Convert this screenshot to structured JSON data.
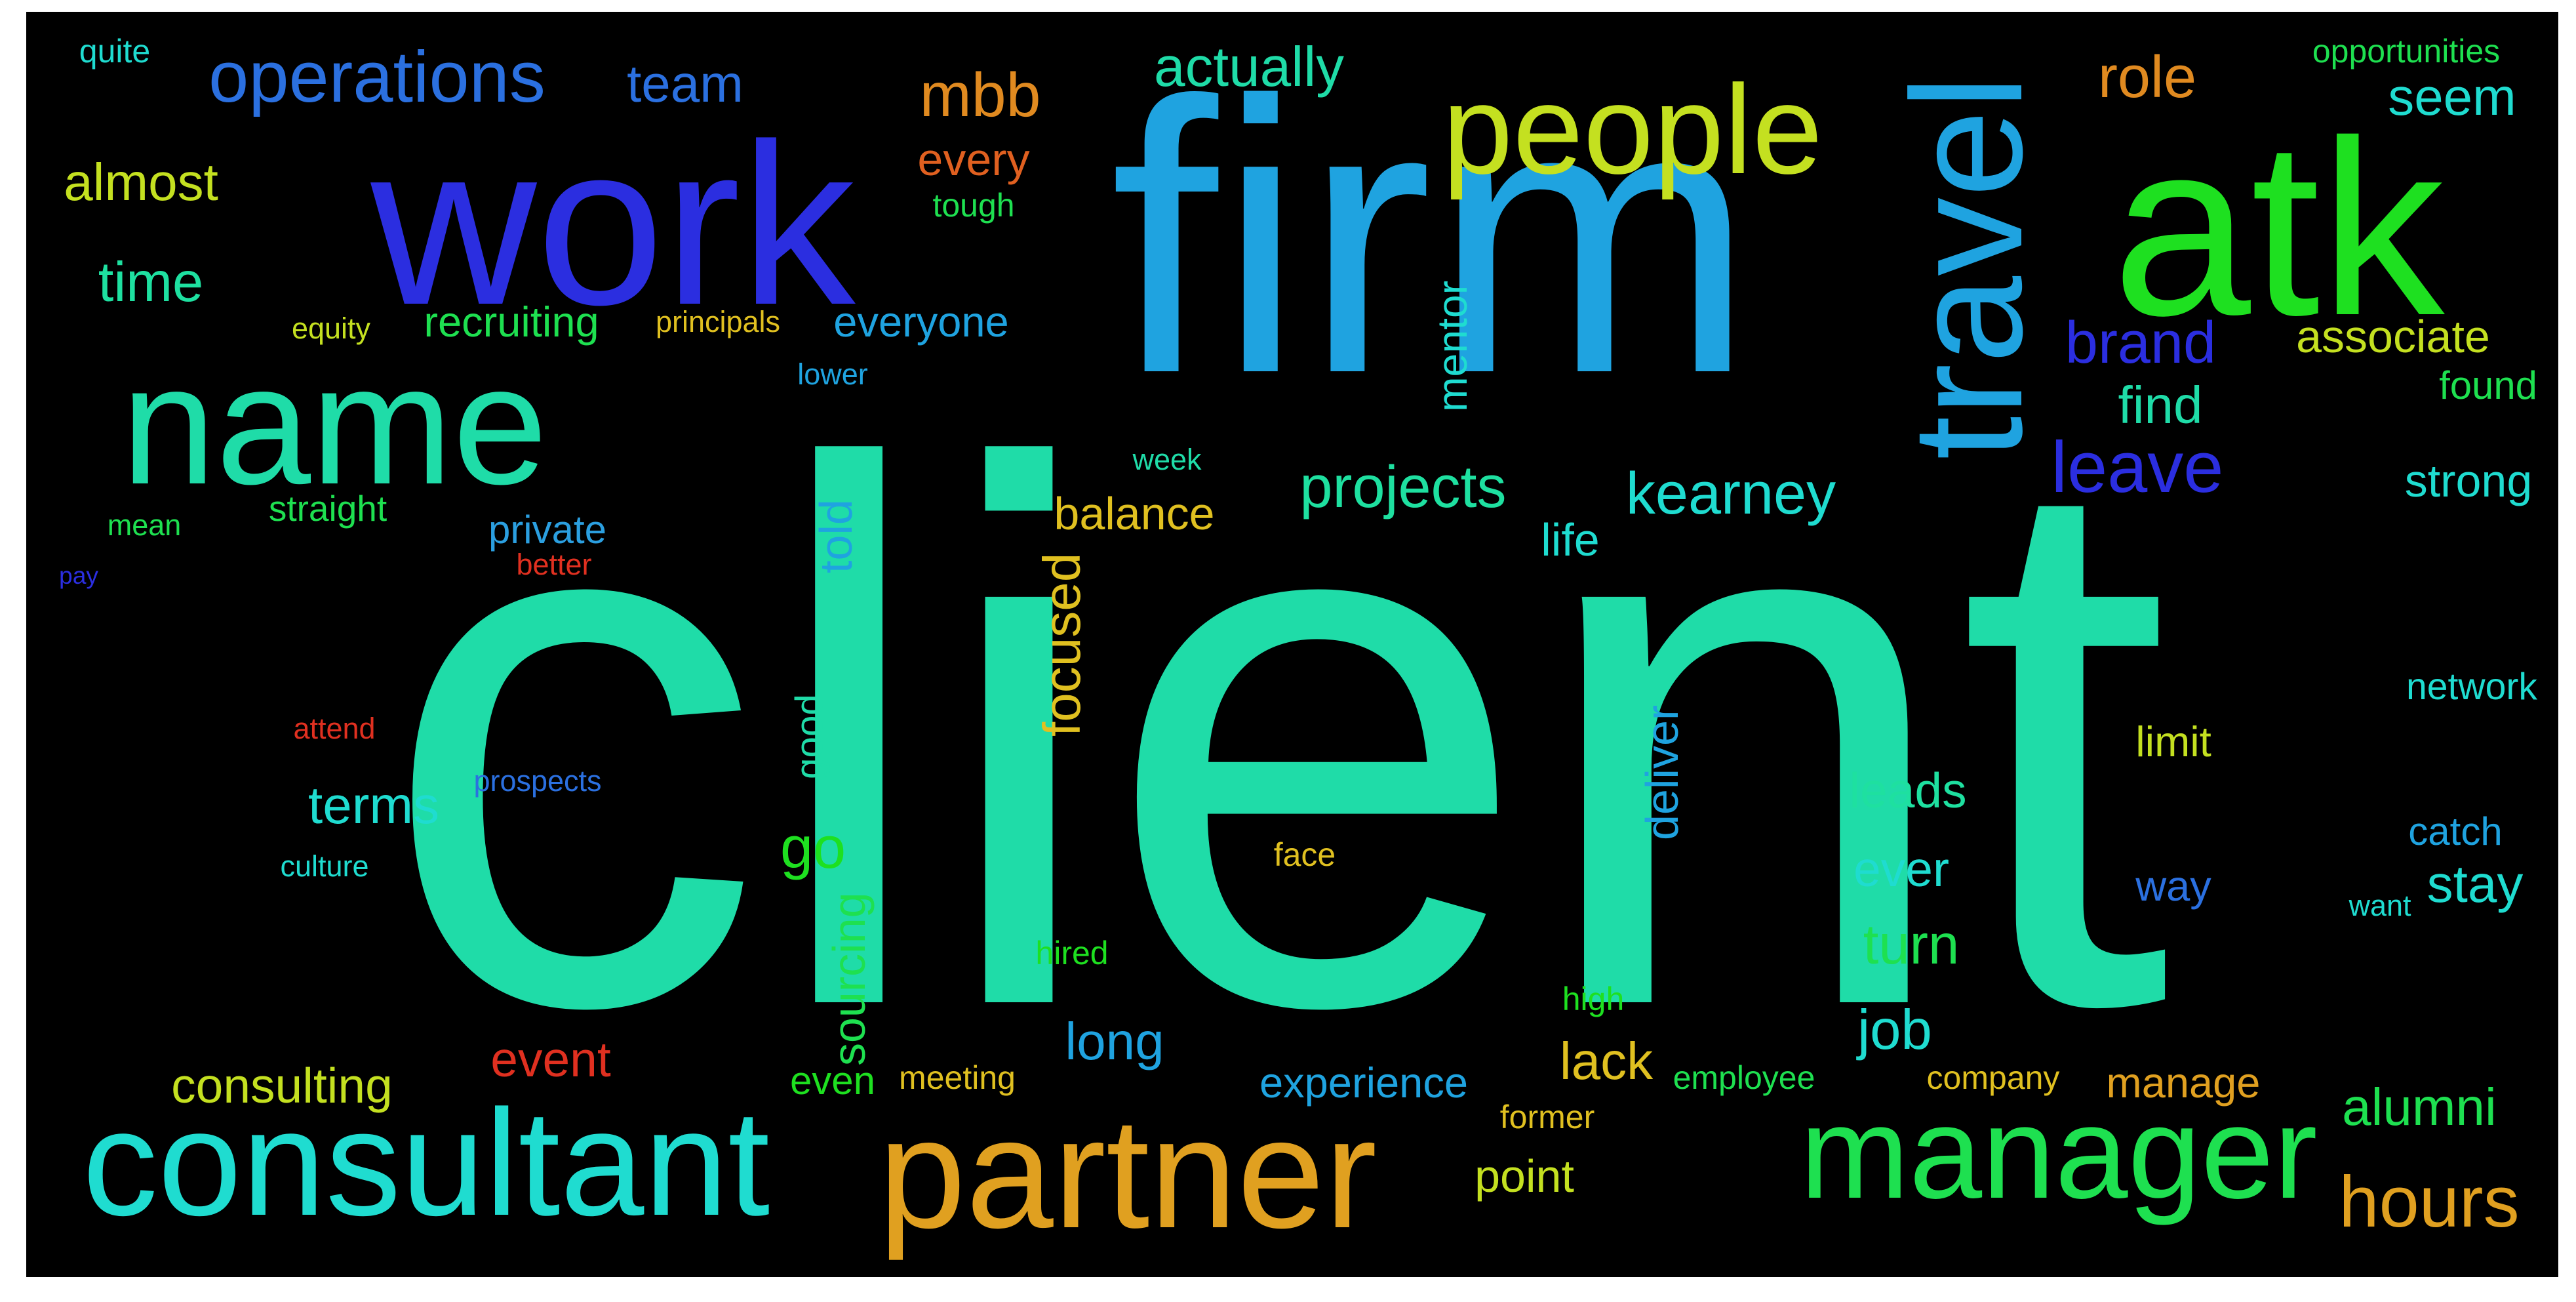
{
  "cloud": {
    "background": "#000000",
    "words": [
      {
        "text": "client",
        "color": "#1fdca8"
      },
      {
        "text": "firm",
        "color": "#1fa3e0"
      },
      {
        "text": "work",
        "color": "#2b2ee0"
      },
      {
        "text": "atk",
        "color": "#1ee020"
      },
      {
        "text": "name",
        "color": "#1fdca8"
      },
      {
        "text": "people",
        "color": "#c4e020"
      },
      {
        "text": "consultant",
        "color": "#1fdcd0"
      },
      {
        "text": "partner",
        "color": "#e0a020"
      },
      {
        "text": "manager",
        "color": "#1ee050"
      },
      {
        "text": "operations",
        "color": "#2b70e0"
      },
      {
        "text": "travel",
        "color": "#1fa3e0"
      },
      {
        "text": "mbb",
        "color": "#e08a20"
      },
      {
        "text": "team",
        "color": "#2b70e0"
      },
      {
        "text": "actually",
        "color": "#1fdca8"
      },
      {
        "text": "role",
        "color": "#e08a20"
      },
      {
        "text": "seem",
        "color": "#1fdcd0"
      },
      {
        "text": "almost",
        "color": "#c4e020"
      },
      {
        "text": "every",
        "color": "#e06020"
      },
      {
        "text": "tough",
        "color": "#1ee050"
      },
      {
        "text": "time",
        "color": "#1ee0a0"
      },
      {
        "text": "recruiting",
        "color": "#1ee050"
      },
      {
        "text": "everyone",
        "color": "#1fa3e0"
      },
      {
        "text": "brand",
        "color": "#2b2ee0"
      },
      {
        "text": "associate",
        "color": "#c4e020"
      },
      {
        "text": "mentor",
        "color": "#1fdcd0"
      },
      {
        "text": "find",
        "color": "#1fdca8"
      },
      {
        "text": "found",
        "color": "#1ee050"
      },
      {
        "text": "leave",
        "color": "#2b2ee0"
      },
      {
        "text": "projects",
        "color": "#1ee0a0"
      },
      {
        "text": "kearney",
        "color": "#1fdcd0"
      },
      {
        "text": "strong",
        "color": "#1fdcd0"
      },
      {
        "text": "private",
        "color": "#2b9fe0"
      },
      {
        "text": "told",
        "color": "#1fa3e0"
      },
      {
        "text": "balance",
        "color": "#e0c020"
      },
      {
        "text": "life",
        "color": "#1fdcd0"
      },
      {
        "text": "focused",
        "color": "#e0c020"
      },
      {
        "text": "network",
        "color": "#1fdcd0"
      },
      {
        "text": "terms",
        "color": "#1fdcd0"
      },
      {
        "text": "limit",
        "color": "#c4e020"
      },
      {
        "text": "leads",
        "color": "#1ee0a0"
      },
      {
        "text": "go",
        "color": "#1ee020"
      },
      {
        "text": "ever",
        "color": "#1fdcd0"
      },
      {
        "text": "way",
        "color": "#2b70e0"
      },
      {
        "text": "stay",
        "color": "#1fdcd0"
      },
      {
        "text": "catch",
        "color": "#1fa3e0"
      },
      {
        "text": "turn",
        "color": "#1ee050"
      },
      {
        "text": "job",
        "color": "#1fdcd0"
      },
      {
        "text": "long",
        "color": "#1fa3e0"
      },
      {
        "text": "event",
        "color": "#e03020"
      },
      {
        "text": "lack",
        "color": "#e0c020"
      },
      {
        "text": "manage",
        "color": "#e0a020"
      },
      {
        "text": "alumni",
        "color": "#1ee050"
      },
      {
        "text": "consulting",
        "color": "#c4e020"
      },
      {
        "text": "even",
        "color": "#1ee020"
      },
      {
        "text": "experience",
        "color": "#1fa3e0"
      },
      {
        "text": "point",
        "color": "#c4e020"
      },
      {
        "text": "hours",
        "color": "#e0a020"
      },
      {
        "text": "former",
        "color": "#e0c020"
      },
      {
        "text": "quite",
        "color": "#1fdcd0"
      },
      {
        "text": "opportunities",
        "color": "#1ee050"
      },
      {
        "text": "straight",
        "color": "#1ee050"
      },
      {
        "text": "mean",
        "color": "#1ee050"
      },
      {
        "text": "pay",
        "color": "#2b2ee0"
      },
      {
        "text": "better",
        "color": "#e03020"
      },
      {
        "text": "equity",
        "color": "#c4e020"
      },
      {
        "text": "principals",
        "color": "#e0c020"
      },
      {
        "text": "attend",
        "color": "#e03020"
      },
      {
        "text": "prospects",
        "color": "#2b70e0"
      },
      {
        "text": "culture",
        "color": "#1fdcd0"
      },
      {
        "text": "hired",
        "color": "#1ee020"
      },
      {
        "text": "high",
        "color": "#1ee020"
      },
      {
        "text": "meeting",
        "color": "#e0c020"
      },
      {
        "text": "employee",
        "color": "#1ee050"
      },
      {
        "text": "company",
        "color": "#e0c020"
      },
      {
        "text": "deliver",
        "color": "#1fa3e0"
      },
      {
        "text": "good",
        "color": "#1fdca8"
      },
      {
        "text": "sourcing",
        "color": "#1ee050"
      },
      {
        "text": "face",
        "color": "#e0c020"
      },
      {
        "text": "lower",
        "color": "#1fa3e0"
      },
      {
        "text": "week",
        "color": "#1fdca8"
      },
      {
        "text": "want",
        "color": "#1fdcd0"
      }
    ]
  }
}
